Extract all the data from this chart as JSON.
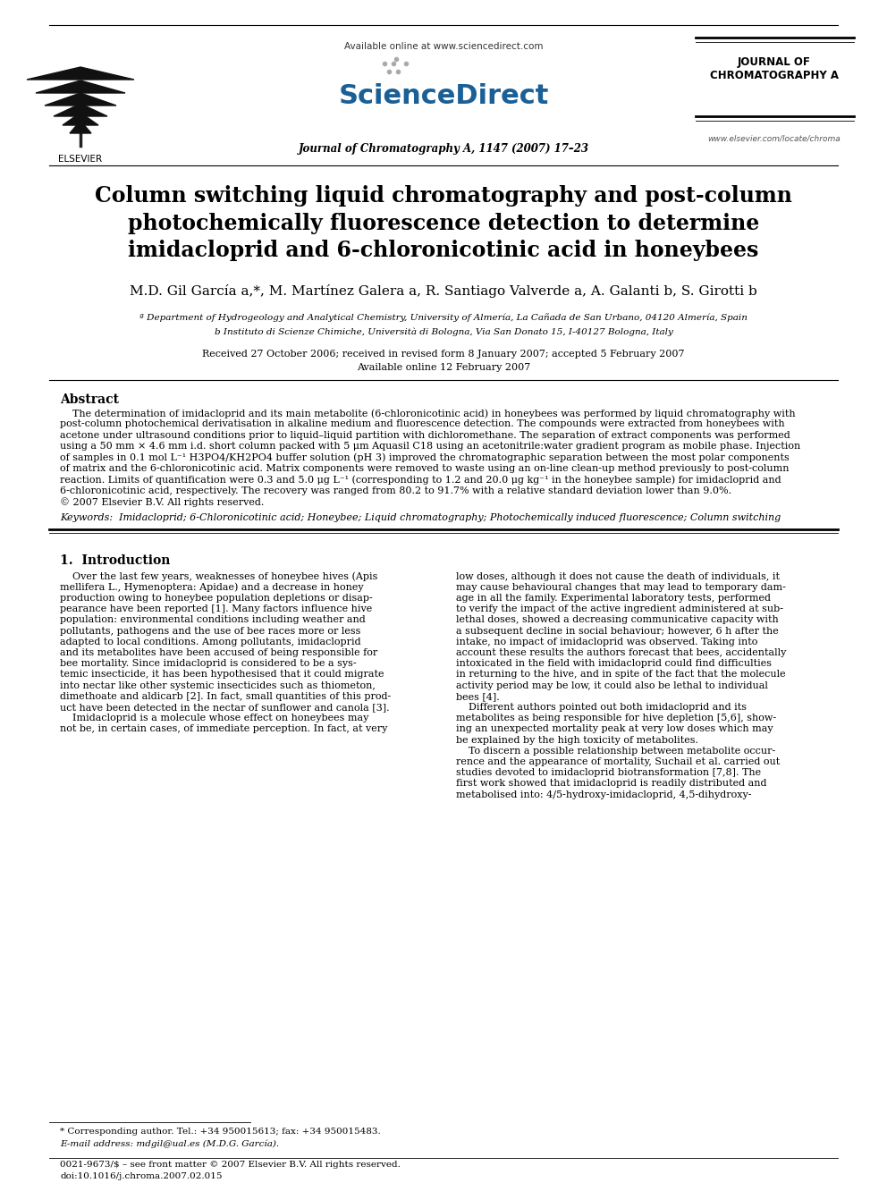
{
  "bg_color": "#ffffff",
  "title_paper": "Column switching liquid chromatography and post-column\nphotochemically fluorescence detection to determine\nimidacloprid and 6-chloronicotinic acid in honeybees",
  "authors": "M.D. Gil García a,*, M. Martínez Galera a, R. Santiago Valverde a, A. Galanti b, S. Girotti b",
  "affil_a": "ª Department of Hydrogeology and Analytical Chemistry, University of Almería, La Cañada de San Urbano, 04120 Almería, Spain",
  "affil_b": "b Instituto di Scienze Chimiche, Università di Bologna, Via San Donato 15, I-40127 Bologna, Italy",
  "received": "Received 27 October 2006; received in revised form 8 January 2007; accepted 5 February 2007",
  "available": "Available online 12 February 2007",
  "journal_header": "Journal of Chromatography A, 1147 (2007) 17–23",
  "available_online_text": "Available online at www.sciencedirect.com",
  "journal_name_line1": "JOURNAL OF",
  "journal_name_line2": "CHROMATOGRAPHY A",
  "website": "www.elsevier.com/locate/chroma",
  "abstract_title": "Abstract",
  "abstract_lines": [
    "    The determination of imidacloprid and its main metabolite (6-chloronicotinic acid) in honeybees was performed by liquid chromatography with",
    "post-column photochemical derivatisation in alkaline medium and fluorescence detection. The compounds were extracted from honeybees with",
    "acetone under ultrasound conditions prior to liquid–liquid partition with dichloromethane. The separation of extract components was performed",
    "using a 50 mm × 4.6 mm i.d. short column packed with 5 μm Aquasil C18 using an acetonitrile:water gradient program as mobile phase. Injection",
    "of samples in 0.1 mol L⁻¹ H3PO4/KH2PO4 buffer solution (pH 3) improved the chromatographic separation between the most polar components",
    "of matrix and the 6-chloronicotinic acid. Matrix components were removed to waste using an on-line clean-up method previously to post-column",
    "reaction. Limits of quantification were 0.3 and 5.0 μg L⁻¹ (corresponding to 1.2 and 20.0 μg kg⁻¹ in the honeybee sample) for imidacloprid and",
    "6-chloronicotinic acid, respectively. The recovery was ranged from 80.2 to 91.7% with a relative standard deviation lower than 9.0%.",
    "© 2007 Elsevier B.V. All rights reserved."
  ],
  "keywords_text": "Keywords:  Imidacloprid; 6-Chloronicotinic acid; Honeybee; Liquid chromatography; Photochemically induced fluorescence; Column switching",
  "section1_title": "1.  Introduction",
  "intro_col1_lines": [
    "    Over the last few years, weaknesses of honeybee hives (Apis",
    "mellifera L., Hymenoptera: Apidae) and a decrease in honey",
    "production owing to honeybee population depletions or disap-",
    "pearance have been reported [1]. Many factors influence hive",
    "population: environmental conditions including weather and",
    "pollutants, pathogens and the use of bee races more or less",
    "adapted to local conditions. Among pollutants, imidacloprid",
    "and its metabolites have been accused of being responsible for",
    "bee mortality. Since imidacloprid is considered to be a sys-",
    "temic insecticide, it has been hypothesised that it could migrate",
    "into nectar like other systemic insecticides such as thiometon,",
    "dimethoate and aldicarb [2]. In fact, small quantities of this prod-",
    "uct have been detected in the nectar of sunflower and canola [3].",
    "    Imidacloprid is a molecule whose effect on honeybees may",
    "not be, in certain cases, of immediate perception. In fact, at very"
  ],
  "intro_col2_lines": [
    "low doses, although it does not cause the death of individuals, it",
    "may cause behavioural changes that may lead to temporary dam-",
    "age in all the family. Experimental laboratory tests, performed",
    "to verify the impact of the active ingredient administered at sub-",
    "lethal doses, showed a decreasing communicative capacity with",
    "a subsequent decline in social behaviour; however, 6 h after the",
    "intake, no impact of imidacloprid was observed. Taking into",
    "account these results the authors forecast that bees, accidentally",
    "intoxicated in the field with imidacloprid could find difficulties",
    "in returning to the hive, and in spite of the fact that the molecule",
    "activity period may be low, it could also be lethal to individual",
    "bees [4].",
    "    Different authors pointed out both imidacloprid and its",
    "metabolites as being responsible for hive depletion [5,6], show-",
    "ing an unexpected mortality peak at very low doses which may",
    "be explained by the high toxicity of metabolites.",
    "    To discern a possible relationship between metabolite occur-",
    "rence and the appearance of mortality, Suchail et al. carried out",
    "studies devoted to imidacloprid biotransformation [7,8]. The",
    "first work showed that imidacloprid is readily distributed and",
    "metabolised into: 4/5-hydroxy-imidacloprid, 4,5-dihydroxy-"
  ],
  "footnote1": "* Corresponding author. Tel.: +34 950015613; fax: +34 950015483.",
  "footnote2": "E-mail address: mdgil@ual.es (M.D.G. García).",
  "footer1": "0021-9673/$ – see front matter © 2007 Elsevier B.V. All rights reserved.",
  "footer2": "doi:10.1016/j.chroma.2007.02.015"
}
